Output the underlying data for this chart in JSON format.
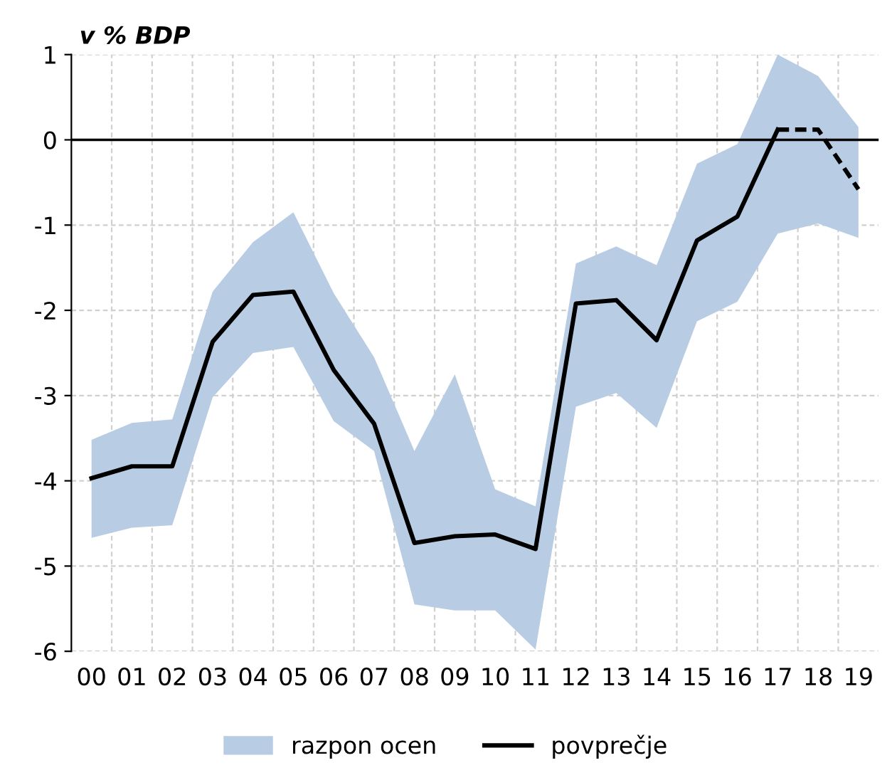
{
  "chart_data": {
    "type": "line",
    "ylabel": "v % BDP",
    "categories": [
      "00",
      "01",
      "02",
      "03",
      "04",
      "05",
      "06",
      "07",
      "08",
      "09",
      "10",
      "11",
      "12",
      "13",
      "14",
      "15",
      "16",
      "17",
      "18",
      "19"
    ],
    "series": [
      {
        "name": "razpon ocen",
        "color": "#b8cce4",
        "values": [
          null,
          null,
          null,
          null,
          null,
          null,
          null,
          null,
          null,
          null,
          null,
          null,
          null,
          null,
          null,
          null,
          null,
          null,
          null,
          null
        ],
        "lower": [
          -4.67,
          -4.55,
          -4.52,
          -3.02,
          -2.5,
          -2.43,
          -3.3,
          -3.65,
          -5.45,
          -5.52,
          -5.52,
          -5.98,
          -3.13,
          -2.97,
          -3.38,
          -2.13,
          -1.9,
          -1.1,
          -0.98,
          -1.15
        ],
        "upper": [
          -3.52,
          -3.32,
          -3.28,
          -1.78,
          -1.2,
          -0.85,
          -1.8,
          -2.55,
          -3.65,
          -2.75,
          -4.1,
          -4.3,
          -1.45,
          -1.25,
          -1.47,
          -0.28,
          -0.05,
          1.0,
          0.75,
          0.15
        ]
      },
      {
        "name": "povprečje",
        "color": "#000000",
        "line_style": "solid",
        "values": [
          -3.97,
          -3.83,
          -3.83,
          -2.37,
          -1.82,
          -1.78,
          -2.7,
          -3.33,
          -4.73,
          -4.65,
          -4.63,
          -4.8,
          -1.92,
          -1.88,
          -2.35,
          -1.18,
          -0.9,
          0.12,
          null,
          null
        ]
      },
      {
        "color": "#000000",
        "line_style": "dashed",
        "values": [
          null,
          null,
          null,
          null,
          null,
          null,
          null,
          null,
          null,
          null,
          null,
          null,
          null,
          null,
          null,
          null,
          null,
          0.12,
          0.12,
          -0.58
        ]
      }
    ],
    "ylim": [
      -6,
      1
    ],
    "yticks": [
      -6,
      -5,
      -4,
      -3,
      -2,
      -1,
      0,
      1
    ],
    "ref_lines": [
      {
        "axis": "y",
        "value": 0,
        "color": "#000000"
      }
    ],
    "grid": true,
    "legend": "bottom",
    "marker": "none"
  }
}
